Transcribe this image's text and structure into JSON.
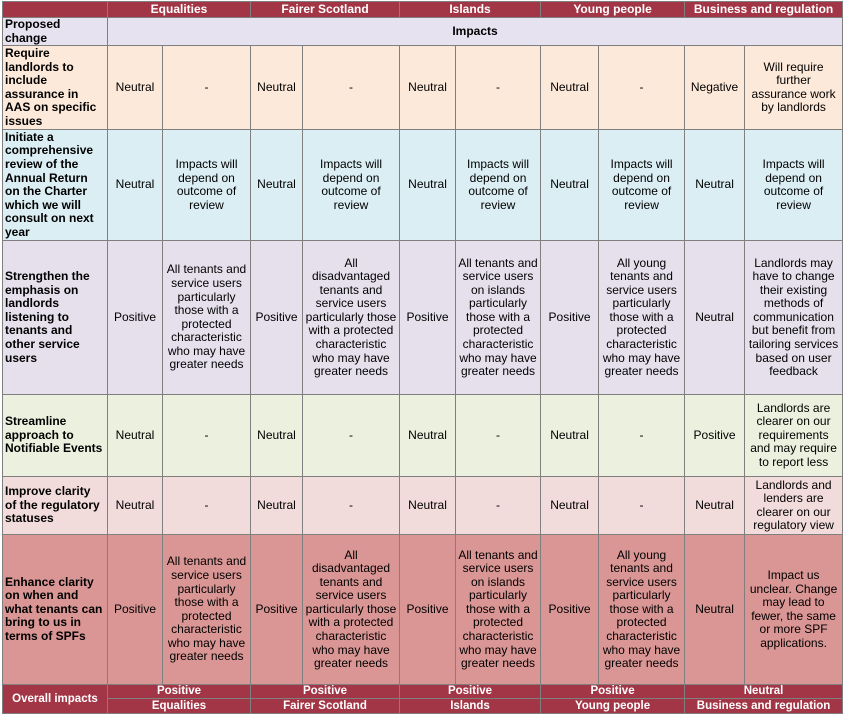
{
  "header": {
    "groups": [
      "Equalities",
      "Fairer Scotland",
      "Islands",
      "Young people",
      "Business and regulation"
    ]
  },
  "table": {
    "corner": "Proposed change",
    "impacts_heading": "Impacts",
    "rows": [
      {
        "change": "Require landlords to include assurance in AAS on specific issues",
        "cells": [
          [
            "Neutral",
            "-"
          ],
          [
            "Neutral",
            "-"
          ],
          [
            "Neutral",
            "-"
          ],
          [
            "Neutral",
            "-"
          ],
          [
            "Negative",
            "Will require further assurance work by landlords"
          ]
        ]
      },
      {
        "change": "Initiate a comprehensive review of the Annual Return on the Charter which we will consult on next year",
        "cells": [
          [
            "Neutral",
            "Impacts will depend on outcome of review"
          ],
          [
            "Neutral",
            "Impacts will depend on outcome of review"
          ],
          [
            "Neutral",
            "Impacts will depend on outcome of review"
          ],
          [
            "Neutral",
            "Impacts will depend on outcome of review"
          ],
          [
            "Neutral",
            "Impacts will depend on outcome of review"
          ]
        ]
      },
      {
        "change": "Strengthen the emphasis on landlords listening to tenants and other service users",
        "cells": [
          [
            "Positive",
            "All tenants and service users particularly those with a protected characteristic who may have greater needs"
          ],
          [
            "Positive",
            "All disadvantaged tenants and service users particularly those with a protected characteristic who may have greater needs"
          ],
          [
            "Positive",
            "All tenants and service users on islands particularly those with a protected characteristic who may have greater needs"
          ],
          [
            "Positive",
            "All young tenants and service users particularly those with a protected characteristic who may have greater needs"
          ],
          [
            "Neutral",
            "Landlords may have to change their existing methods of communication but benefit from tailoring services based on user feedback"
          ]
        ]
      },
      {
        "change": "Streamline approach to Notifiable Events",
        "cells": [
          [
            "Neutral",
            "-"
          ],
          [
            "Neutral",
            "-"
          ],
          [
            "Neutral",
            "-"
          ],
          [
            "Neutral",
            "-"
          ],
          [
            "Positive",
            "Landlords are clearer on our requirements and may require to report less"
          ]
        ]
      },
      {
        "change": "Improve clarity of the regulatory statuses",
        "cells": [
          [
            "Neutral",
            "-"
          ],
          [
            "Neutral",
            "-"
          ],
          [
            "Neutral",
            "-"
          ],
          [
            "Neutral",
            "-"
          ],
          [
            "Neutral",
            "Landlords and lenders are clearer on our regulatory view"
          ]
        ]
      },
      {
        "change": "Enhance clarity on when and what tenants can bring to us in terms of SPFs",
        "cells": [
          [
            "Positive",
            "All tenants and service users particularly those with a protected characteristic who may have greater needs"
          ],
          [
            "Positive",
            "All disadvantaged tenants and service users particularly those with a protected characteristic who may have greater needs"
          ],
          [
            "Positive",
            "All tenants and service users on islands particularly those with a protected characteristic who may have greater needs"
          ],
          [
            "Positive",
            "All young tenants and service users particularly those with a protected characteristic who may have greater needs"
          ],
          [
            "Neutral",
            "Impact us unclear. Change may lead to fewer, the same or more SPF applications."
          ]
        ]
      }
    ]
  },
  "footer": {
    "label": "Overall impacts",
    "ratings": [
      "Positive",
      "Positive",
      "Positive",
      "Positive",
      "Neutral"
    ],
    "groups": [
      "Equalities",
      "Fairer Scotland",
      "Islands",
      "Young people",
      "Business and regulation"
    ]
  }
}
